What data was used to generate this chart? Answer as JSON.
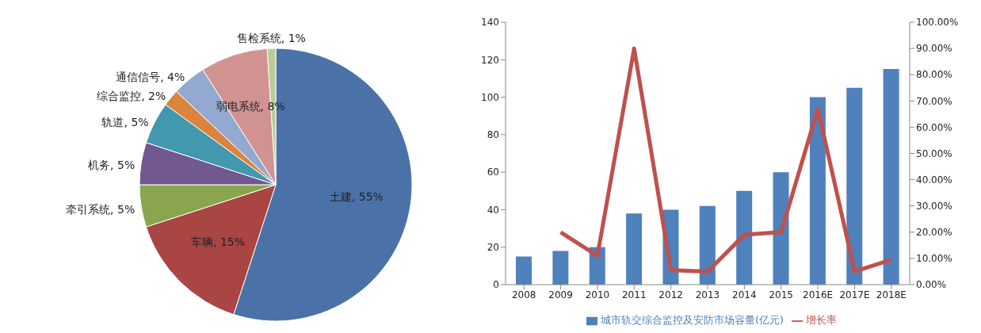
{
  "chart_data": [
    {
      "type": "pie",
      "categories": [
        "土建",
        "车辆",
        "牵引系统",
        "机务",
        "轨道",
        "综合监控",
        "通信信号",
        "弱电系统",
        "售检系统"
      ],
      "values": [
        55,
        15,
        5,
        5,
        5,
        2,
        4,
        8,
        1
      ],
      "colors": [
        "#4a72a8",
        "#a94543",
        "#89a54e",
        "#71588f",
        "#4198af",
        "#db843d",
        "#93a9cf",
        "#d19392",
        "#b9cd96"
      ],
      "value_labels": [
        "55%",
        "15%",
        "5%",
        "5%",
        "5%",
        "2%",
        "4%",
        "8%",
        "1%"
      ]
    },
    {
      "type": "bar",
      "categories": [
        "2008",
        "2009",
        "2010",
        "2011",
        "2012",
        "2013",
        "2014",
        "2015",
        "2016E",
        "2017E",
        "2018E"
      ],
      "series": [
        {
          "name": "城市轨交综合监控及安防市场容量(亿元)",
          "type": "bar",
          "color": "#4f81bd",
          "values": [
            15,
            18,
            20,
            38,
            40,
            42,
            50,
            60,
            100,
            105,
            115
          ]
        },
        {
          "name": "增长率",
          "type": "line",
          "axis": "y2",
          "color": "#c0504d",
          "values": [
            null,
            20,
            11,
            90,
            5.5,
            5,
            19,
            20,
            67,
            5,
            9.5
          ]
        }
      ],
      "ylim": [
        0,
        140
      ],
      "yticks": [
        0,
        20,
        40,
        60,
        80,
        100,
        120,
        140
      ],
      "y2lim": [
        0,
        100
      ],
      "y2ticks": [
        {
          "value": 0,
          "label": "0.00%"
        },
        {
          "value": 10,
          "label": "10.00%"
        },
        {
          "value": 20,
          "label": "20.00%"
        },
        {
          "value": 30,
          "label": "30.00%"
        },
        {
          "value": 40,
          "label": "40.00%"
        },
        {
          "value": 50,
          "label": "50.00%"
        },
        {
          "value": 60,
          "label": "60.00%"
        },
        {
          "value": 70,
          "label": "70.00%"
        },
        {
          "value": 80,
          "label": "80.00%"
        },
        {
          "value": 90,
          "label": "90.00%"
        },
        {
          "value": 100,
          "label": "100.00%"
        }
      ],
      "legend": "bottom"
    }
  ]
}
